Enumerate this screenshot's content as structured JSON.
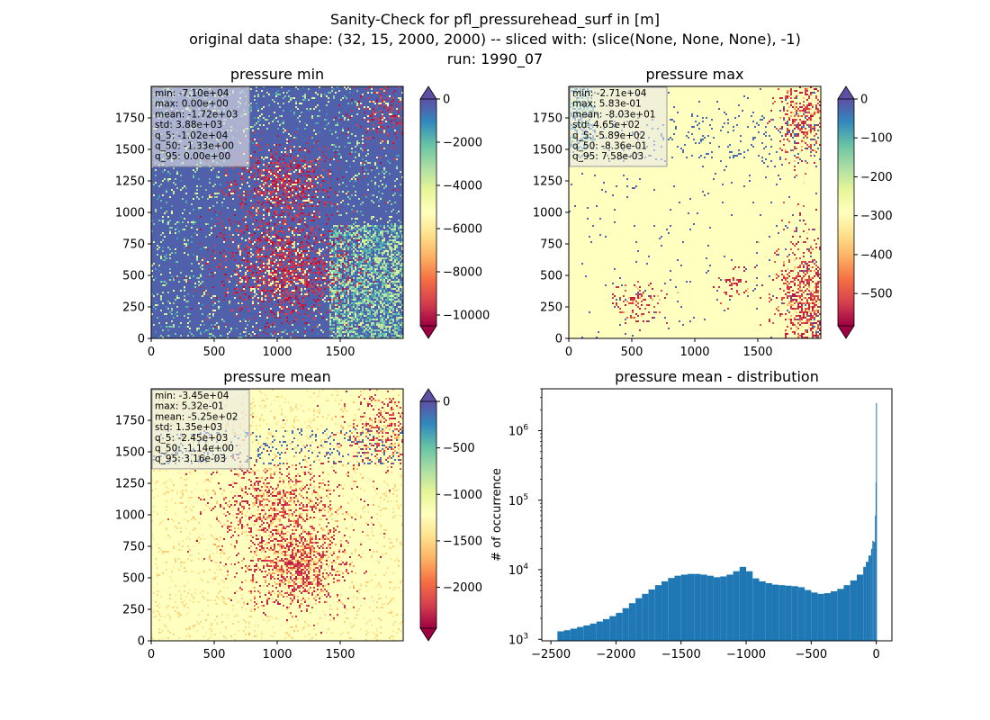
{
  "figure": {
    "title_lines": [
      "Sanity-Check for pfl_pressurehead_surf in [m]",
      "original data shape: (32, 15, 2000, 2000) -- sliced with: (slice(None, None, None), -1)",
      "run: 1990_07"
    ]
  },
  "chart_data": [
    {
      "type": "heatmap",
      "title": "pressure min",
      "colormap": "Spectral",
      "colorbar_extend": "both",
      "colorbar_range": [
        -10500,
        0
      ],
      "colorbar_ticks": [
        0,
        -2000,
        -4000,
        -6000,
        -8000,
        -10000
      ],
      "colorbar_tick_labels": [
        "0",
        "−2000",
        "−4000",
        "−6000",
        "−8000",
        "−10000"
      ],
      "x_ticks": [
        "0",
        "500",
        "1000",
        "1500"
      ],
      "y_ticks": [
        "0",
        "250",
        "500",
        "750",
        "1000",
        "1250",
        "1500",
        "1750"
      ],
      "xlim": [
        0,
        2000
      ],
      "ylim": [
        0,
        2000
      ],
      "stats": [
        "min: -7.10e+04",
        "max: 0.00e+00",
        "mean: -1.72e+03",
        "std: 3.88e+03",
        "q_5: -1.02e+04",
        "q_50: -1.33e+00",
        "q_95: 0.00e+00"
      ]
    },
    {
      "type": "heatmap",
      "title": "pressure max",
      "colormap": "Spectral",
      "colorbar_extend": "both",
      "colorbar_range": [
        -583,
        0
      ],
      "colorbar_ticks": [
        0,
        -100,
        -200,
        -300,
        -400,
        -500
      ],
      "colorbar_tick_labels": [
        "0",
        "−100",
        "−200",
        "−300",
        "−400",
        "−500"
      ],
      "x_ticks": [
        "0",
        "500",
        "1000",
        "1500"
      ],
      "y_ticks": [
        "0",
        "250",
        "500",
        "750",
        "1000",
        "1250",
        "1500",
        "1750"
      ],
      "xlim": [
        0,
        2000
      ],
      "ylim": [
        0,
        2000
      ],
      "stats": [
        "min: -2.71e+04",
        "max: 5.83e-01",
        "mean: -8.03e+01",
        "std: 4.65e+02",
        "q_5: -5.89e+02",
        "q_50: -8.36e-01",
        "q_95: 7.58e-03"
      ]
    },
    {
      "type": "heatmap",
      "title": "pressure mean",
      "colormap": "Spectral",
      "colorbar_extend": "both",
      "colorbar_range": [
        -2440,
        0
      ],
      "colorbar_ticks": [
        0,
        -500,
        -1000,
        -1500,
        -2000
      ],
      "colorbar_tick_labels": [
        "0",
        "−500",
        "−1000",
        "−1500",
        "−2000"
      ],
      "x_ticks": [
        "0",
        "500",
        "1000",
        "1500"
      ],
      "y_ticks": [
        "0",
        "250",
        "500",
        "750",
        "1000",
        "1250",
        "1500",
        "1750"
      ],
      "xlim": [
        0,
        2000
      ],
      "ylim": [
        0,
        2000
      ],
      "stats": [
        "min: -3.45e+04",
        "max: 5.32e-01",
        "mean: -5.25e+02",
        "std: 1.35e+03",
        "q_5: -2.45e+03",
        "q_50: -1.14e+00",
        "q_95: 3.16e-03"
      ]
    },
    {
      "type": "histogram",
      "title": "pressure mean - distribution",
      "ylabel": "# of occurrence",
      "yscale": "log",
      "xlim": [
        -2570,
        120
      ],
      "ylim": [
        950,
        4000000
      ],
      "x_ticks": [
        -2500,
        -2000,
        -1500,
        -1000,
        -500,
        0
      ],
      "x_tick_labels": [
        "−2500",
        "−2000",
        "−1500",
        "−1000",
        "−500",
        "0"
      ],
      "y_ticks": [
        1000,
        10000,
        100000,
        1000000
      ],
      "y_tick_labels": [
        [
          "10",
          "3"
        ],
        [
          "10",
          "4"
        ],
        [
          "10",
          "5"
        ],
        [
          "10",
          "6"
        ]
      ],
      "bar_color": "#1f77b4",
      "bins": [
        -2450,
        -2400,
        -2350,
        -2300,
        -2250,
        -2200,
        -2150,
        -2100,
        -2050,
        -2000,
        -1950,
        -1900,
        -1850,
        -1800,
        -1750,
        -1700,
        -1650,
        -1600,
        -1550,
        -1500,
        -1450,
        -1400,
        -1350,
        -1300,
        -1250,
        -1200,
        -1150,
        -1100,
        -1050,
        -1000,
        -950,
        -900,
        -850,
        -800,
        -750,
        -700,
        -650,
        -600,
        -550,
        -500,
        -450,
        -400,
        -350,
        -300,
        -250,
        -200,
        -150,
        -100,
        -80,
        -60,
        -40,
        -30,
        -20,
        -10,
        -5,
        0
      ],
      "counts": [
        1300,
        1350,
        1420,
        1500,
        1580,
        1680,
        1800,
        1950,
        2150,
        2400,
        2800,
        3300,
        3900,
        4500,
        5200,
        6000,
        6800,
        7600,
        8200,
        8500,
        8700,
        8700,
        8500,
        8200,
        7800,
        8000,
        8500,
        9500,
        11000,
        9500,
        7500,
        6800,
        6400,
        6100,
        6000,
        5900,
        5800,
        5600,
        5100,
        4700,
        4500,
        4600,
        4900,
        5300,
        6000,
        7000,
        8500,
        11000,
        13000,
        16000,
        20000,
        26000,
        25000,
        60000,
        180000,
        2500000
      ]
    }
  ]
}
